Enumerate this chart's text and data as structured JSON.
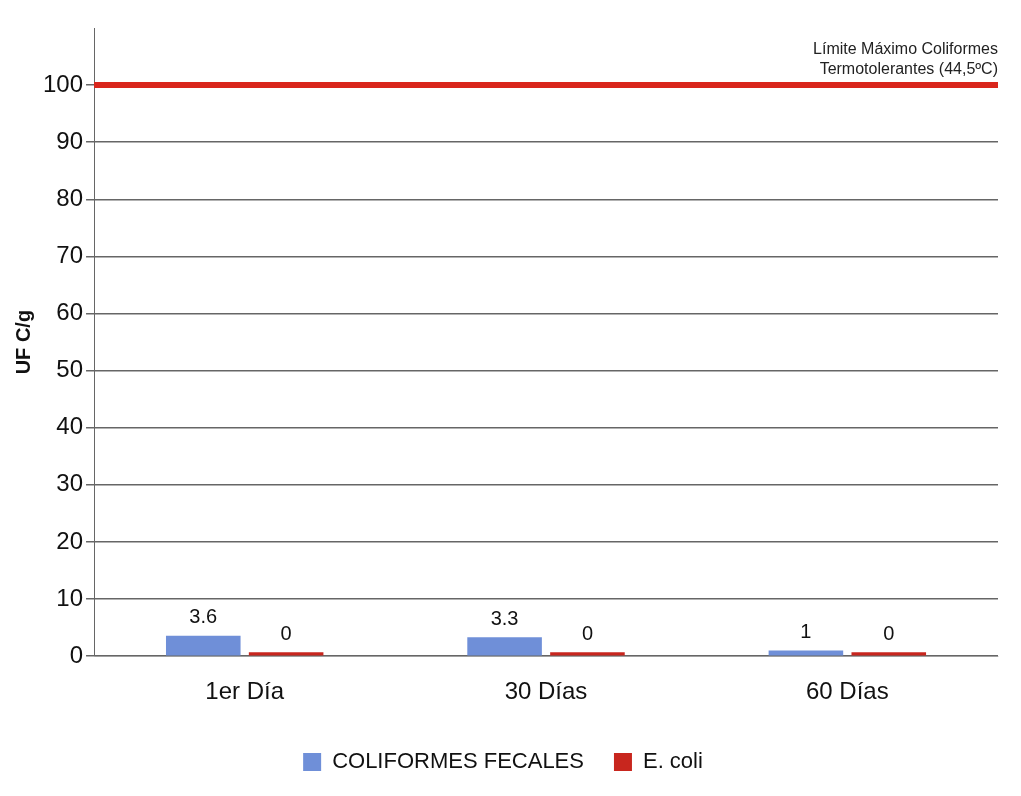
{
  "chart_data": {
    "type": "bar",
    "ylabel": "UF C/g",
    "categories": [
      "1er Día",
      "30 Días",
      "60 Días"
    ],
    "series": [
      {
        "name": "COLIFORMES FECALES",
        "color": "#6f8fd8",
        "values": [
          3.6,
          3.3,
          1
        ]
      },
      {
        "name": "E. coli",
        "color": "#c8261e",
        "values": [
          0,
          0,
          0
        ]
      }
    ],
    "ylim": [
      0,
      110
    ],
    "yticks": [
      0,
      10,
      20,
      30,
      40,
      50,
      60,
      70,
      80,
      90,
      100
    ],
    "grid": "y",
    "legend": "bottom",
    "data_labels": true,
    "ref_lines": [
      {
        "axis": "y",
        "value": 100,
        "label": "Límite Máximo Coliformes Termotolerantes (44,5ºC)",
        "color": "#d9261c"
      }
    ]
  }
}
